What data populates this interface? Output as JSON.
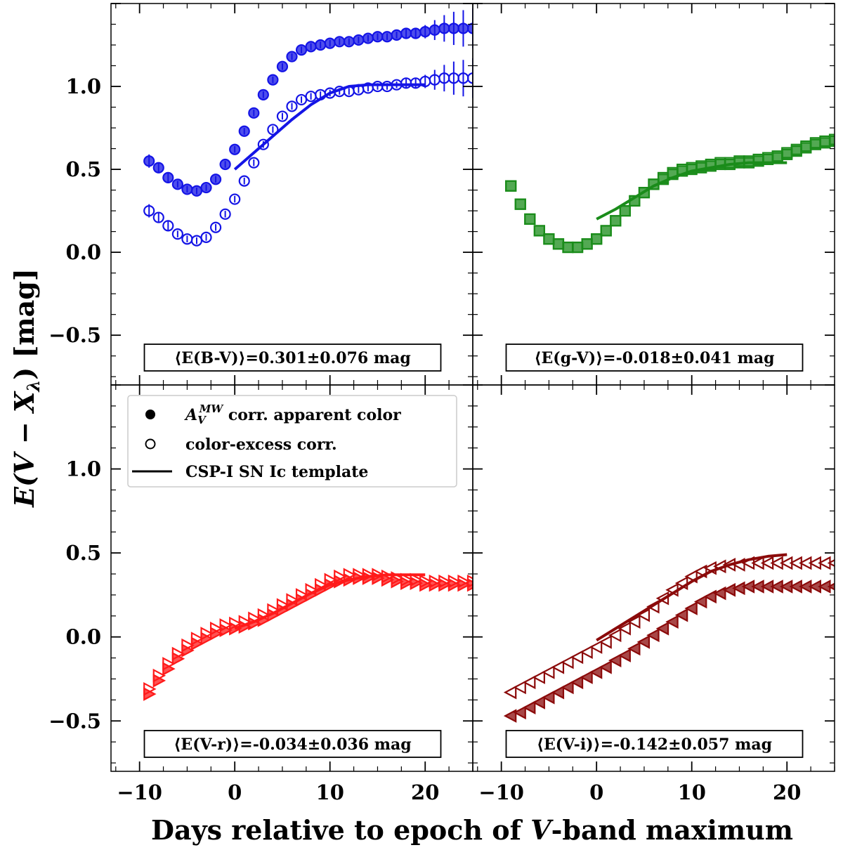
{
  "figure": {
    "ylabel_prefix": "E(",
    "ylabel_v": "V",
    "ylabel_minus": " − ",
    "ylabel_x": "X",
    "ylabel_sub": "λ",
    "ylabel_suffix": ") [mag]",
    "xlabel_prefix": "Days relative to epoch of ",
    "xlabel_v": "V",
    "xlabel_suffix": "-band maximum"
  },
  "legend": {
    "filled_label_A": "A",
    "filled_label_sub": "V",
    "filled_label_sup": "MW",
    "filled_label_rest": " corr. apparent color",
    "open_label": "color-excess corr.",
    "line_label": "CSP-I SN Ic template"
  },
  "chart_data": [
    {
      "type": "scatter",
      "panel": "top-left",
      "color": "#1414e6",
      "marker": "circle",
      "annotation": "⟨E(B-V)⟩=0.301±0.076 mag",
      "xlim": [
        -13,
        25
      ],
      "ylim": [
        -0.8,
        1.5
      ],
      "xticks": [
        "−10",
        "0",
        "10",
        "20"
      ],
      "yticks": [
        "−0.5",
        "0.0",
        "0.5",
        "1.0"
      ],
      "series": [
        {
          "name": "apparent",
          "style": "filled",
          "x": [
            -9,
            -8,
            -7,
            -6,
            -5,
            -4,
            -3,
            -2,
            -1,
            0,
            1,
            2,
            3,
            4,
            5,
            6,
            7,
            8,
            9,
            10,
            11,
            12,
            13,
            14,
            15,
            16,
            17,
            18,
            19,
            20,
            21,
            22,
            23,
            24,
            25
          ],
          "y": [
            0.55,
            0.51,
            0.45,
            0.41,
            0.38,
            0.37,
            0.39,
            0.44,
            0.53,
            0.62,
            0.73,
            0.84,
            0.95,
            1.04,
            1.12,
            1.18,
            1.22,
            1.24,
            1.25,
            1.26,
            1.27,
            1.27,
            1.28,
            1.29,
            1.3,
            1.3,
            1.31,
            1.32,
            1.32,
            1.33,
            1.34,
            1.35,
            1.35,
            1.35,
            1.35
          ],
          "err": [
            0.04,
            0.03,
            0.03,
            0.02,
            0.02,
            0.02,
            0.02,
            0.02,
            0.02,
            0.02,
            0.02,
            0.02,
            0.02,
            0.02,
            0.02,
            0.02,
            0.02,
            0.02,
            0.02,
            0.02,
            0.02,
            0.02,
            0.02,
            0.02,
            0.02,
            0.02,
            0.02,
            0.03,
            0.03,
            0.04,
            0.06,
            0.08,
            0.1,
            0.11,
            0.12
          ]
        },
        {
          "name": "excess",
          "style": "open",
          "x": [
            -9,
            -8,
            -7,
            -6,
            -5,
            -4,
            -3,
            -2,
            -1,
            0,
            1,
            2,
            3,
            4,
            5,
            6,
            7,
            8,
            9,
            10,
            11,
            12,
            13,
            14,
            15,
            16,
            17,
            18,
            19,
            20,
            21,
            22,
            23,
            24,
            25
          ],
          "y": [
            0.25,
            0.21,
            0.16,
            0.11,
            0.08,
            0.07,
            0.09,
            0.15,
            0.23,
            0.32,
            0.43,
            0.54,
            0.65,
            0.74,
            0.82,
            0.88,
            0.92,
            0.94,
            0.95,
            0.96,
            0.97,
            0.97,
            0.98,
            0.99,
            1.0,
            1.0,
            1.01,
            1.02,
            1.02,
            1.03,
            1.04,
            1.05,
            1.05,
            1.05,
            1.05
          ],
          "err": [
            0.04,
            0.03,
            0.03,
            0.02,
            0.02,
            0.02,
            0.02,
            0.02,
            0.02,
            0.02,
            0.02,
            0.02,
            0.02,
            0.02,
            0.02,
            0.02,
            0.02,
            0.02,
            0.02,
            0.02,
            0.02,
            0.02,
            0.02,
            0.02,
            0.02,
            0.02,
            0.02,
            0.03,
            0.03,
            0.04,
            0.06,
            0.08,
            0.1,
            0.11,
            0.12
          ]
        },
        {
          "name": "template",
          "style": "line",
          "x": [
            0,
            2,
            4,
            6,
            8,
            10,
            12,
            14,
            16,
            18,
            20
          ],
          "y": [
            0.5,
            0.6,
            0.7,
            0.8,
            0.89,
            0.96,
            1.0,
            1.01,
            1.01,
            1.01,
            1.01
          ]
        }
      ]
    },
    {
      "type": "scatter",
      "panel": "top-right",
      "color": "#1a8c1a",
      "marker": "square",
      "annotation": "⟨E(g-V)⟩=-0.018±0.041 mag",
      "xlim": [
        -13,
        25
      ],
      "ylim": [
        -0.8,
        1.5
      ],
      "xticks": [
        "−10",
        "0",
        "10",
        "20"
      ],
      "yticks": [],
      "series": [
        {
          "name": "apparent",
          "style": "filled",
          "x": [
            -9,
            -8,
            -7,
            -6,
            -5,
            -4,
            -3,
            -2,
            -1,
            0,
            1,
            2,
            3,
            4,
            5,
            6,
            7,
            8,
            9,
            10,
            11,
            12,
            13,
            14,
            15,
            16,
            17,
            18,
            19,
            20,
            21,
            22,
            23,
            24,
            25
          ],
          "y": [
            0.4,
            0.29,
            0.2,
            0.13,
            0.08,
            0.05,
            0.03,
            0.03,
            0.05,
            0.08,
            0.13,
            0.19,
            0.25,
            0.31,
            0.36,
            0.41,
            0.44,
            0.47,
            0.49,
            0.5,
            0.51,
            0.52,
            0.53,
            0.53,
            0.54,
            0.54,
            0.55,
            0.56,
            0.57,
            0.59,
            0.61,
            0.63,
            0.65,
            0.66,
            0.67
          ]
        },
        {
          "name": "excess",
          "style": "open",
          "x": [
            -9,
            -8,
            -7,
            -6,
            -5,
            -4,
            -3,
            -2,
            -1,
            0,
            1,
            2,
            3,
            4,
            5,
            6,
            7,
            8,
            9,
            10,
            11,
            12,
            13,
            14,
            15,
            16,
            17,
            18,
            19,
            20,
            21,
            22,
            23,
            24,
            25
          ],
          "y": [
            0.4,
            0.29,
            0.2,
            0.13,
            0.08,
            0.05,
            0.03,
            0.03,
            0.05,
            0.08,
            0.13,
            0.19,
            0.25,
            0.31,
            0.36,
            0.41,
            0.45,
            0.48,
            0.5,
            0.51,
            0.52,
            0.53,
            0.54,
            0.54,
            0.55,
            0.55,
            0.56,
            0.57,
            0.58,
            0.6,
            0.62,
            0.64,
            0.66,
            0.67,
            0.68
          ]
        },
        {
          "name": "template",
          "style": "line",
          "x": [
            0,
            2,
            4,
            6,
            8,
            10,
            12,
            14,
            16,
            18,
            20
          ],
          "y": [
            0.2,
            0.26,
            0.33,
            0.4,
            0.45,
            0.49,
            0.51,
            0.53,
            0.54,
            0.54,
            0.54
          ]
        }
      ]
    },
    {
      "type": "scatter",
      "panel": "bottom-left",
      "color": "#ff1a1a",
      "marker": "triangle-right",
      "annotation": "⟨E(V-r)⟩=-0.034±0.036 mag",
      "xlim": [
        -13,
        25
      ],
      "ylim": [
        -0.8,
        1.5
      ],
      "xticks": [
        "−10",
        "0",
        "10",
        "20"
      ],
      "yticks": [
        "−0.5",
        "0.0",
        "0.5",
        "1.0"
      ],
      "series": [
        {
          "name": "apparent",
          "style": "filled",
          "x": [
            -9,
            -8,
            -7,
            -6,
            -5,
            -4,
            -3,
            -2,
            -1,
            0,
            1,
            2,
            3,
            4,
            5,
            6,
            7,
            8,
            9,
            10,
            11,
            12,
            13,
            14,
            15,
            16,
            17,
            18,
            19,
            20,
            21,
            22,
            23,
            24,
            25
          ],
          "y": [
            -0.34,
            -0.26,
            -0.19,
            -0.13,
            -0.08,
            -0.04,
            -0.01,
            0.02,
            0.04,
            0.05,
            0.06,
            0.08,
            0.1,
            0.13,
            0.16,
            0.19,
            0.22,
            0.25,
            0.28,
            0.31,
            0.33,
            0.34,
            0.35,
            0.35,
            0.35,
            0.34,
            0.33,
            0.32,
            0.32,
            0.31,
            0.31,
            0.31,
            0.31,
            0.31,
            0.31
          ]
        },
        {
          "name": "excess",
          "style": "open",
          "x": [
            -9,
            -8,
            -7,
            -6,
            -5,
            -4,
            -3,
            -2,
            -1,
            0,
            1,
            2,
            3,
            4,
            5,
            6,
            7,
            8,
            9,
            10,
            11,
            12,
            13,
            14,
            15,
            16,
            17,
            18,
            19,
            20,
            21,
            22,
            23,
            24,
            25
          ],
          "y": [
            -0.31,
            -0.23,
            -0.16,
            -0.1,
            -0.05,
            -0.01,
            0.02,
            0.05,
            0.07,
            0.08,
            0.09,
            0.11,
            0.13,
            0.16,
            0.19,
            0.22,
            0.25,
            0.28,
            0.31,
            0.34,
            0.36,
            0.37,
            0.37,
            0.37,
            0.37,
            0.36,
            0.35,
            0.34,
            0.34,
            0.33,
            0.33,
            0.33,
            0.33,
            0.33,
            0.33
          ]
        },
        {
          "name": "template",
          "style": "line",
          "x": [
            0,
            2,
            4,
            6,
            8,
            10,
            12,
            14,
            16,
            18,
            20
          ],
          "y": [
            0.05,
            0.09,
            0.14,
            0.2,
            0.26,
            0.31,
            0.34,
            0.36,
            0.37,
            0.37,
            0.37
          ]
        }
      ]
    },
    {
      "type": "scatter",
      "panel": "bottom-right",
      "color": "#8b0a0a",
      "marker": "triangle-left",
      "annotation": "⟨E(V-i)⟩=-0.142±0.057 mag",
      "xlim": [
        -13,
        25
      ],
      "ylim": [
        -0.8,
        1.5
      ],
      "xticks": [
        "−10",
        "0",
        "10",
        "20"
      ],
      "yticks": [],
      "series": [
        {
          "name": "apparent",
          "style": "filled",
          "x": [
            -9,
            -8,
            -7,
            -6,
            -5,
            -4,
            -3,
            -2,
            -1,
            0,
            1,
            2,
            3,
            4,
            5,
            6,
            7,
            8,
            9,
            10,
            11,
            12,
            13,
            14,
            15,
            16,
            17,
            18,
            19,
            20,
            21,
            22,
            23,
            24,
            25
          ],
          "y": [
            -0.47,
            -0.45,
            -0.42,
            -0.39,
            -0.36,
            -0.33,
            -0.3,
            -0.27,
            -0.24,
            -0.21,
            -0.18,
            -0.14,
            -0.11,
            -0.07,
            -0.03,
            0.01,
            0.05,
            0.09,
            0.13,
            0.17,
            0.21,
            0.24,
            0.26,
            0.28,
            0.29,
            0.3,
            0.3,
            0.3,
            0.3,
            0.3,
            0.3,
            0.3,
            0.3,
            0.3,
            0.3
          ]
        },
        {
          "name": "excess",
          "style": "open",
          "x": [
            -9,
            -8,
            -7,
            -6,
            -5,
            -4,
            -3,
            -2,
            -1,
            0,
            1,
            2,
            3,
            4,
            5,
            6,
            7,
            8,
            9,
            10,
            11,
            12,
            13,
            14,
            15,
            16,
            17,
            18,
            19,
            20,
            21,
            22,
            23,
            24,
            25
          ],
          "y": [
            -0.33,
            -0.3,
            -0.27,
            -0.24,
            -0.21,
            -0.18,
            -0.15,
            -0.12,
            -0.09,
            -0.06,
            -0.03,
            0.01,
            0.05,
            0.09,
            0.13,
            0.18,
            0.23,
            0.28,
            0.32,
            0.36,
            0.39,
            0.41,
            0.42,
            0.43,
            0.43,
            0.44,
            0.44,
            0.44,
            0.44,
            0.44,
            0.44,
            0.44,
            0.44,
            0.44,
            0.44
          ]
        },
        {
          "name": "template",
          "style": "line",
          "x": [
            0,
            2,
            4,
            6,
            8,
            10,
            12,
            14,
            16,
            18,
            20
          ],
          "y": [
            -0.02,
            0.05,
            0.12,
            0.19,
            0.26,
            0.33,
            0.39,
            0.43,
            0.46,
            0.48,
            0.49
          ]
        }
      ]
    }
  ]
}
